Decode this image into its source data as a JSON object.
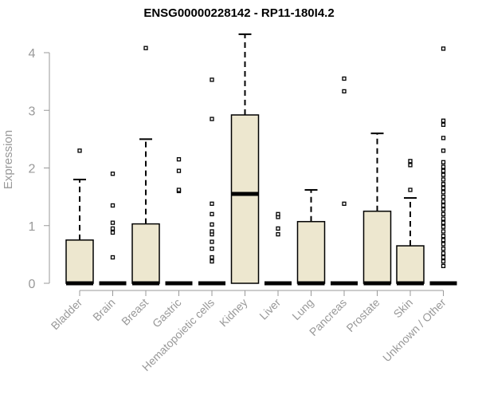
{
  "chart_data": {
    "type": "boxplot",
    "title": "ENSG00000228142 - RP11-180I4.2",
    "ylabel": "Expression",
    "xlabel": "",
    "ylim": [
      0,
      4.35
    ],
    "yticks": [
      0,
      1,
      2,
      3,
      4
    ],
    "grid": false,
    "colors": {
      "box_fill": "#ede7cf",
      "box_stroke": "#000000",
      "axis": "#999999",
      "tick_label": "#999999"
    },
    "categories": [
      "Bladder",
      "Brain",
      "Breast",
      "Gastric",
      "Hematopoietic cells",
      "Kidney",
      "Liver",
      "Lung",
      "Pancreas",
      "Prostate",
      "Skin",
      "Unknown / Other"
    ],
    "boxes": [
      {
        "category": "Bladder",
        "q1": 0,
        "median": 0,
        "q3": 0.75,
        "whisker_low": 0,
        "whisker_high": 1.8,
        "outliers": [
          2.3
        ]
      },
      {
        "category": "Brain",
        "q1": 0,
        "median": 0,
        "q3": 0,
        "whisker_low": 0,
        "whisker_high": 0,
        "outliers": [
          0.45,
          0.88,
          0.95,
          1.05,
          1.35,
          1.9
        ]
      },
      {
        "category": "Breast",
        "q1": 0,
        "median": 0,
        "q3": 1.03,
        "whisker_low": 0,
        "whisker_high": 2.5,
        "outliers": [
          4.08
        ]
      },
      {
        "category": "Gastric",
        "q1": 0,
        "median": 0,
        "q3": 0,
        "whisker_low": 0,
        "whisker_high": 0,
        "outliers": [
          1.6,
          1.62,
          1.95,
          2.15
        ]
      },
      {
        "category": "Hematopoietic cells",
        "q1": 0,
        "median": 0,
        "q3": 0,
        "whisker_low": 0,
        "whisker_high": 0,
        "outliers": [
          0.38,
          0.45,
          0.6,
          0.72,
          0.85,
          0.9,
          1.02,
          1.2,
          1.38,
          2.85,
          3.53
        ]
      },
      {
        "category": "Kidney",
        "q1": 0,
        "median": 1.55,
        "q3": 2.92,
        "whisker_low": 0,
        "whisker_high": 4.32,
        "outliers": []
      },
      {
        "category": "Liver",
        "q1": 0,
        "median": 0,
        "q3": 0,
        "whisker_low": 0,
        "whisker_high": 0,
        "outliers": [
          0.85,
          0.95,
          1.15,
          1.2
        ]
      },
      {
        "category": "Lung",
        "q1": 0,
        "median": 0,
        "q3": 1.07,
        "whisker_low": 0,
        "whisker_high": 1.62,
        "outliers": []
      },
      {
        "category": "Pancreas",
        "q1": 0,
        "median": 0,
        "q3": 0,
        "whisker_low": 0,
        "whisker_high": 0,
        "outliers": [
          1.38,
          3.33,
          3.55
        ]
      },
      {
        "category": "Prostate",
        "q1": 0,
        "median": 0,
        "q3": 1.25,
        "whisker_low": 0,
        "whisker_high": 2.6,
        "outliers": []
      },
      {
        "category": "Skin",
        "q1": 0,
        "median": 0,
        "q3": 0.65,
        "whisker_low": 0,
        "whisker_high": 1.48,
        "outliers": [
          1.62,
          2.05,
          2.12
        ]
      },
      {
        "category": "Unknown / Other",
        "q1": 0,
        "median": 0,
        "q3": 0,
        "whisker_low": 0,
        "whisker_high": 0,
        "outliers": [
          0.3,
          0.38,
          0.45,
          0.52,
          0.6,
          0.68,
          0.75,
          0.82,
          0.9,
          0.98,
          1.05,
          1.12,
          1.2,
          1.28,
          1.35,
          1.42,
          1.5,
          1.58,
          1.65,
          1.72,
          1.8,
          1.88,
          1.95,
          2.02,
          2.1,
          2.3,
          2.52,
          2.75,
          2.82,
          4.07
        ]
      }
    ]
  }
}
